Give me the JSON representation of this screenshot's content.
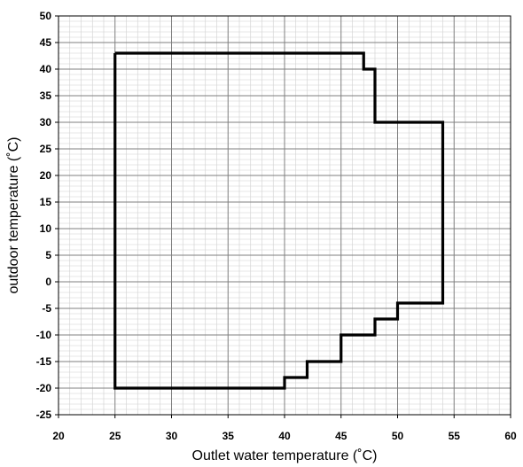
{
  "chart_data": {
    "type": "line",
    "title": "",
    "xlabel": "Outlet water  temperature (˚C)",
    "ylabel": "outdoor temperature (˚C)",
    "xlim": [
      20,
      60
    ],
    "ylim": [
      -25,
      50
    ],
    "x_ticks": [
      20,
      25,
      30,
      35,
      40,
      45,
      50,
      55,
      60
    ],
    "y_ticks": [
      -25,
      -20,
      -15,
      -10,
      -5,
      0,
      5,
      10,
      15,
      20,
      25,
      30,
      35,
      40,
      45,
      50
    ],
    "x_tick_labels": [
      "20",
      "25",
      "30",
      "35",
      "40",
      "45",
      "50",
      "55",
      "60"
    ],
    "y_tick_labels": [
      "-25",
      "-20",
      "-15",
      "-10",
      "-5",
      "0",
      "5",
      "10",
      "15",
      "20",
      "25",
      "30",
      "35",
      "40",
      "45",
      "50"
    ],
    "grid": true,
    "minor_grid": true,
    "legend": false,
    "colors": {
      "line": "#000000",
      "major_grid": "#7f7f7f",
      "minor_grid": "#cfcfcf",
      "axes": "#000000"
    },
    "series": [
      {
        "points": [
          [
            25,
            43
          ],
          [
            47,
            43
          ],
          [
            47,
            40
          ],
          [
            48,
            40
          ],
          [
            48,
            30
          ],
          [
            54,
            30
          ],
          [
            54,
            -4
          ],
          [
            50,
            -4
          ],
          [
            50,
            -7
          ],
          [
            48,
            -7
          ],
          [
            48,
            -10
          ],
          [
            45,
            -10
          ],
          [
            45,
            -15
          ],
          [
            42,
            -15
          ],
          [
            42,
            -18
          ],
          [
            40,
            -18
          ],
          [
            40,
            -20
          ],
          [
            25,
            -20
          ],
          [
            25,
            43
          ]
        ]
      }
    ]
  }
}
